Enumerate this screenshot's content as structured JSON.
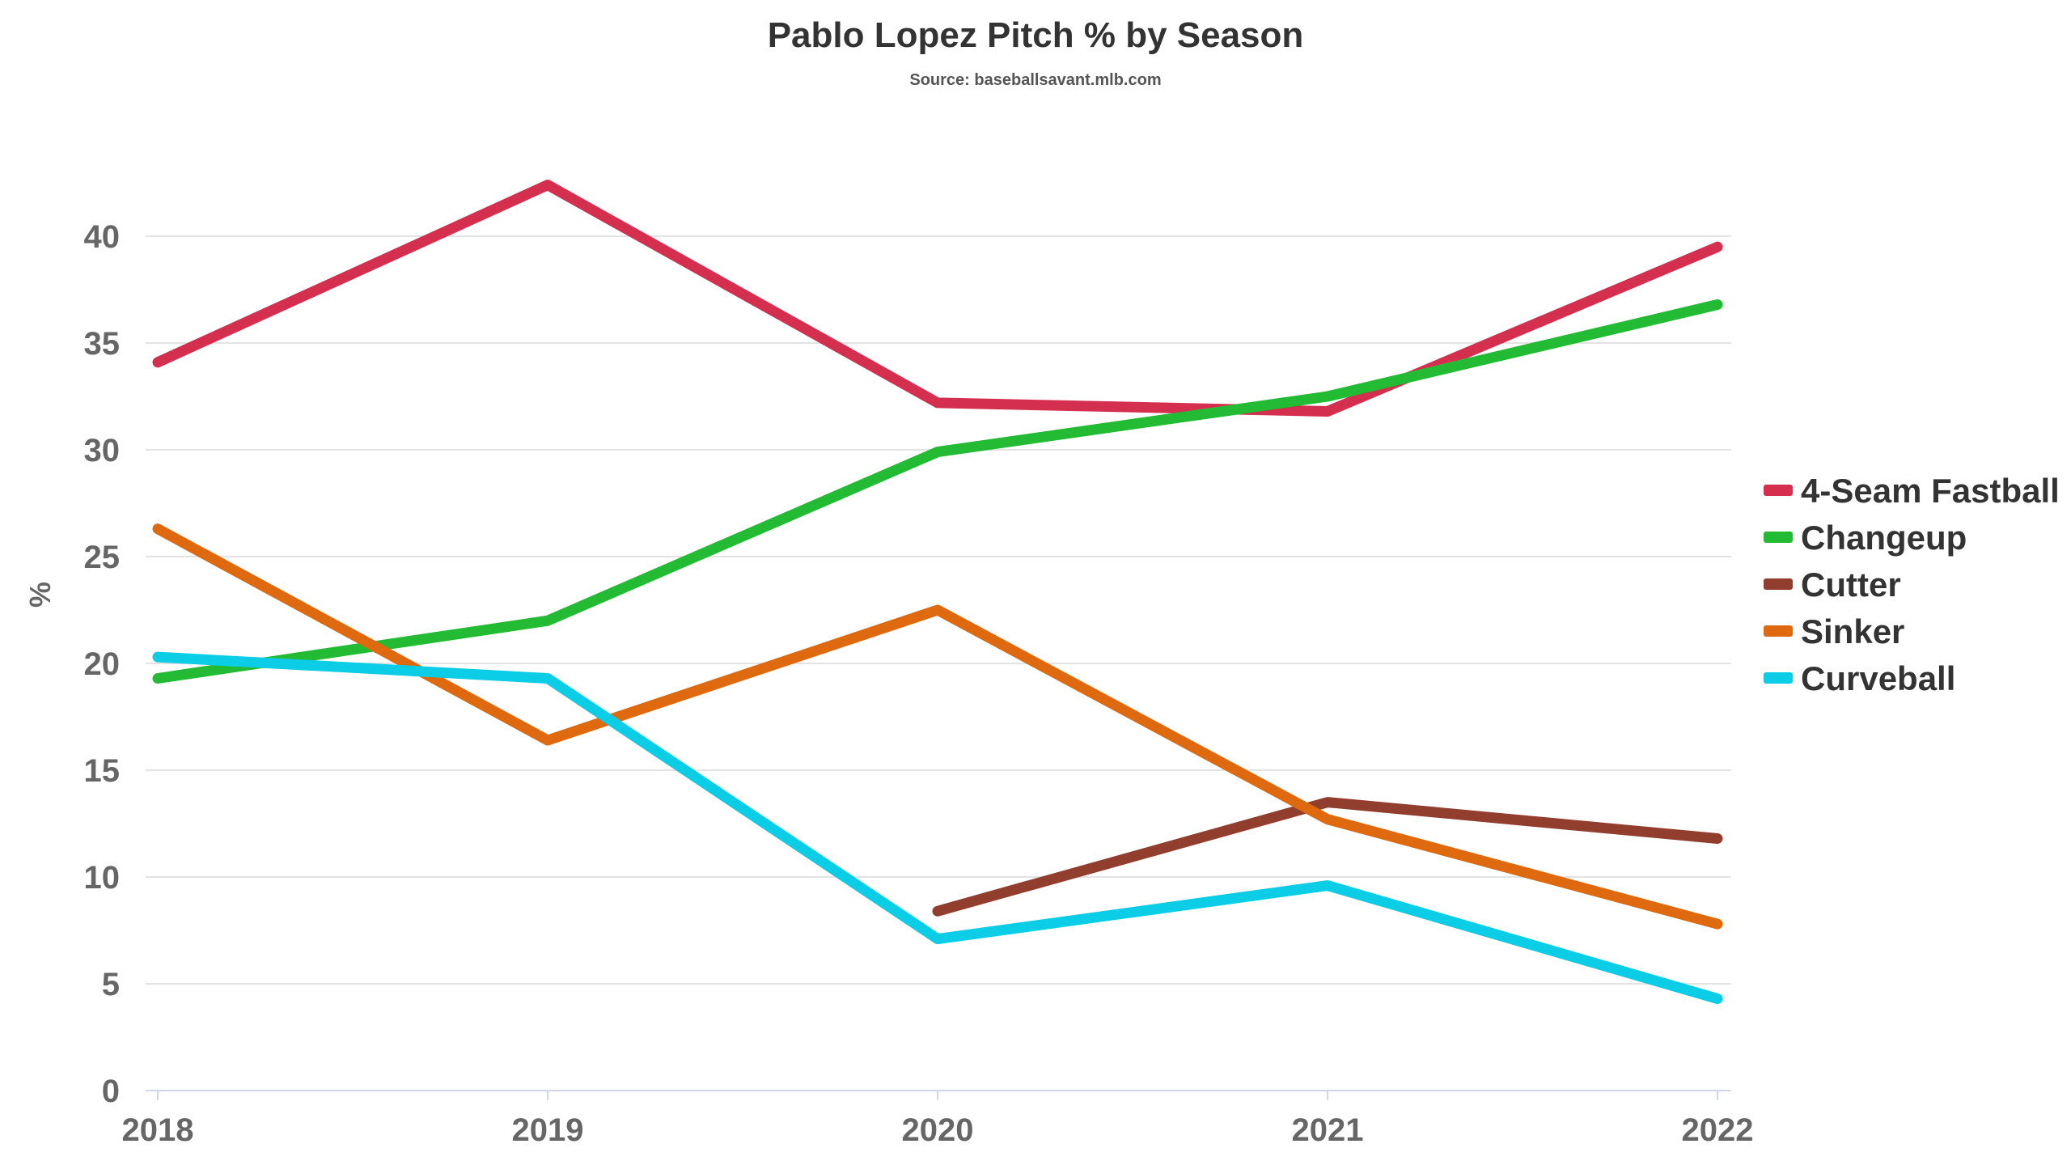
{
  "chart_data": {
    "type": "line",
    "title": "Pablo Lopez Pitch % by Season",
    "subtitle": "Source: baseballsavant.mlb.com",
    "xlabel": "",
    "ylabel": "%",
    "x": [
      "2018",
      "2019",
      "2020",
      "2021",
      "2022"
    ],
    "ylim": [
      0,
      45
    ],
    "yticks": [
      0,
      5,
      10,
      15,
      20,
      25,
      30,
      35,
      40
    ],
    "grid": true,
    "legend_position": "right",
    "series": [
      {
        "name": "4-Seam Fastball",
        "color": "#d42f4f",
        "values": [
          34.1,
          42.4,
          32.2,
          31.8,
          39.5
        ]
      },
      {
        "name": "Changeup",
        "color": "#22bb33",
        "values": [
          19.3,
          22.0,
          29.9,
          32.5,
          36.8
        ]
      },
      {
        "name": "Cutter",
        "color": "#923e2e",
        "values": [
          null,
          null,
          8.4,
          13.5,
          11.8
        ]
      },
      {
        "name": "Sinker",
        "color": "#df690e",
        "values": [
          26.3,
          16.4,
          22.5,
          12.7,
          7.8
        ]
      },
      {
        "name": "Curveball",
        "color": "#0ccde6",
        "values": [
          20.3,
          19.3,
          7.1,
          9.6,
          4.3
        ]
      }
    ]
  }
}
